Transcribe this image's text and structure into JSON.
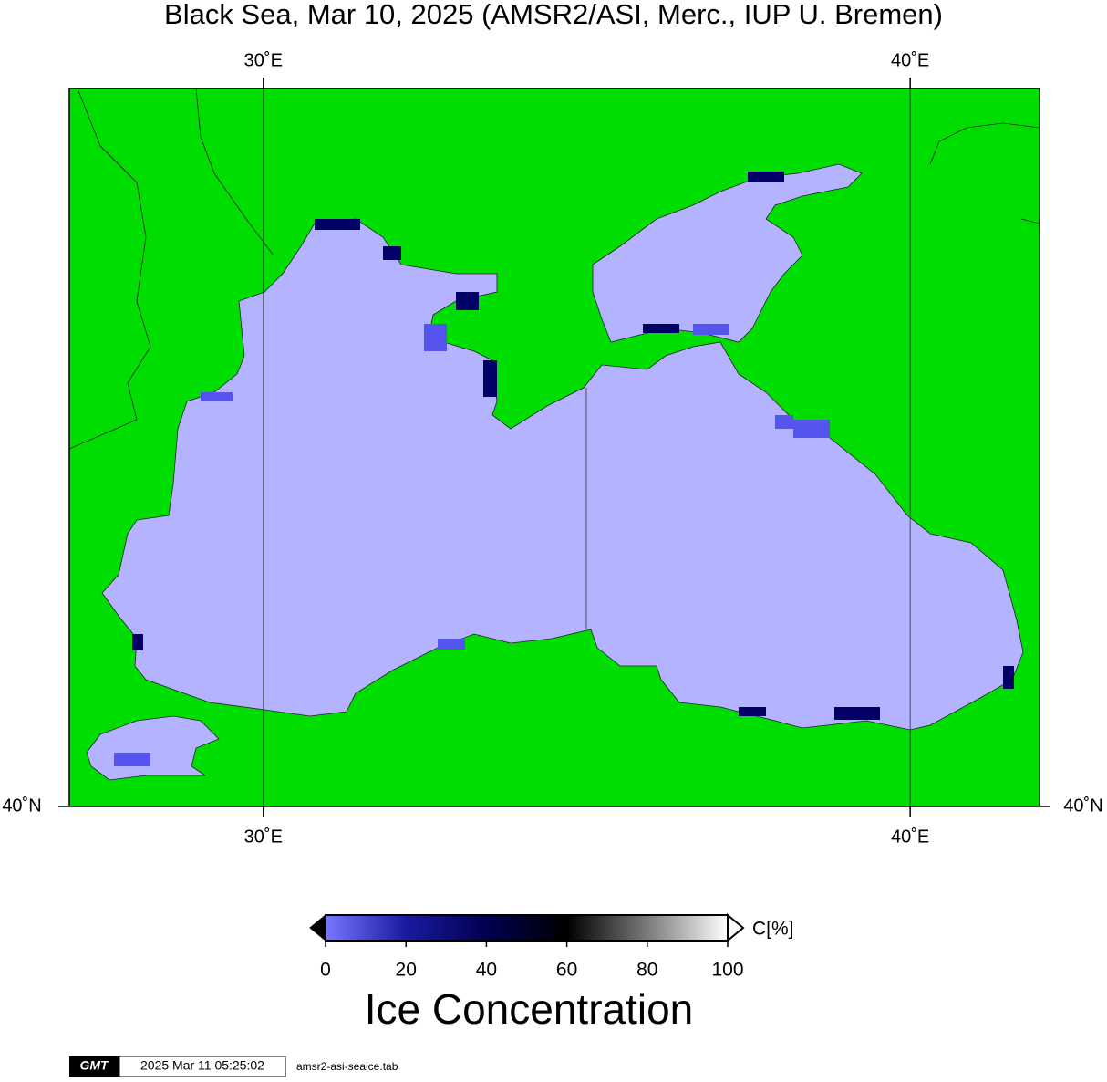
{
  "chart_data": {
    "type": "map",
    "title": "Black Sea, Mar 10, 2025 (AMSR2/ASI, Merc., IUP U. Bremen)",
    "xlim": [
      27,
      42
    ],
    "ylim": [
      40,
      48
    ],
    "xticks": [
      {
        "value": 30,
        "label": "30˚E"
      },
      {
        "value": 40,
        "label": "40˚E"
      }
    ],
    "yticks": [
      {
        "value": 40,
        "label": "40˚N"
      }
    ],
    "grid": true,
    "land_color": "#00dd00",
    "water_color": "#b3b3ff",
    "colorbar": {
      "label": "C[%]",
      "title": "Ice Concentration",
      "lim": [
        0,
        100
      ],
      "ticks": [
        0,
        20,
        40,
        60,
        80,
        100
      ],
      "colors": [
        "#7777ff",
        "#1a1aa0",
        "#000050",
        "#000000",
        "#7a7a7a",
        "#ffffff"
      ]
    }
  },
  "footer": {
    "logo": "GMT",
    "timestamp": "2025 Mar 11 05:25:02",
    "file": "amsr2-asi-seaice.tab"
  }
}
